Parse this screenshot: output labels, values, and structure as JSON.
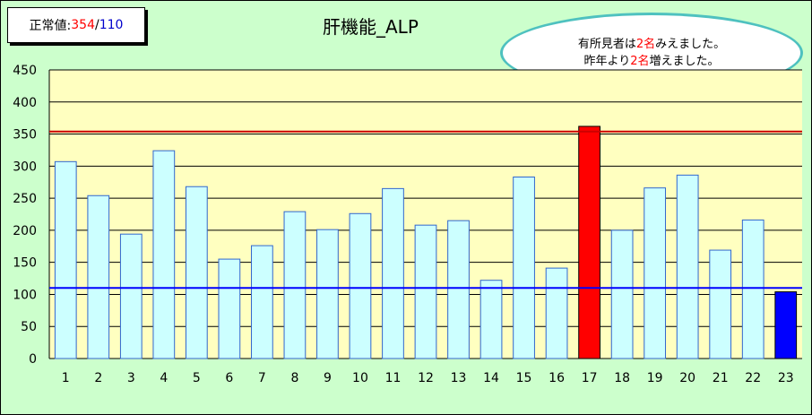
{
  "normal_label": {
    "prefix": "正常値:",
    "upper": "354",
    "sep": "/",
    "lower": "110"
  },
  "note": {
    "line1_a": "有所見者は",
    "line1_b": "2名",
    "line1_c": "みえました。",
    "line2_a": "昨年より",
    "line2_b": "2名",
    "line2_c": "増えました。"
  },
  "colors": {
    "background": "#ccffcc",
    "plot_area": "#ffffc0",
    "bar": "#ccffff",
    "bar_border": "#3366cc",
    "high_bar": "#ff0000",
    "low_bar": "#0000ff",
    "upper_line": "#cc0000",
    "lower_line": "#0000ff"
  },
  "chart_data": {
    "type": "bar",
    "title": "肝機能_ALP",
    "categories": [
      "1",
      "2",
      "3",
      "4",
      "5",
      "6",
      "7",
      "8",
      "9",
      "10",
      "11",
      "12",
      "13",
      "14",
      "15",
      "16",
      "17",
      "18",
      "19",
      "20",
      "21",
      "22",
      "23"
    ],
    "values": [
      307,
      254,
      194,
      324,
      268,
      155,
      176,
      229,
      201,
      226,
      265,
      208,
      215,
      122,
      283,
      141,
      362,
      200,
      266,
      286,
      169,
      216,
      104
    ],
    "highlight": {
      "high_index": 16,
      "low_index": 22
    },
    "reference_lines": [
      {
        "value": 354,
        "color": "#cc0000"
      },
      {
        "value": 110,
        "color": "#0000ff"
      }
    ],
    "ylim": [
      0,
      450
    ],
    "yticks": [
      0,
      50,
      100,
      150,
      200,
      250,
      300,
      350,
      400,
      450
    ],
    "grid": true,
    "legend": "none"
  }
}
